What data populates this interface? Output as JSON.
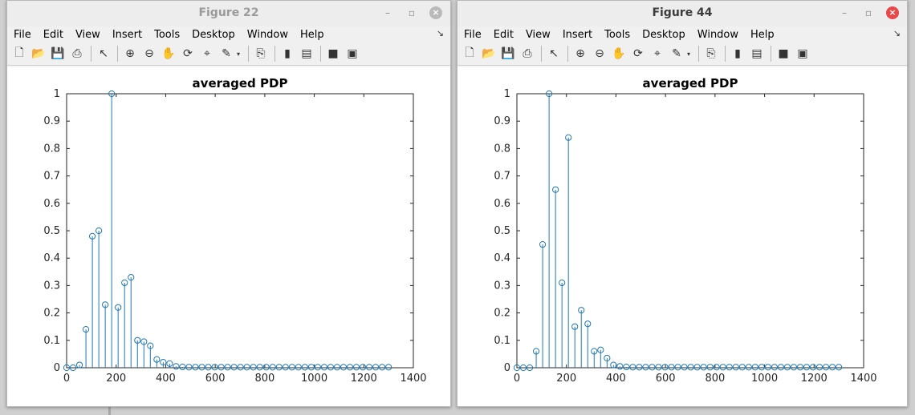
{
  "windows": [
    {
      "title": "Figure 22",
      "active": false,
      "menus": [
        "File",
        "Edit",
        "View",
        "Insert",
        "Tools",
        "Desktop",
        "Window",
        "Help"
      ],
      "chart_data": {
        "type": "stem",
        "title": "averaged PDP",
        "xlim": [
          0,
          1400
        ],
        "ylim": [
          0,
          1
        ],
        "xticks": [
          0,
          200,
          400,
          600,
          800,
          1000,
          1200,
          1400
        ],
        "yticks": [
          0,
          0.1,
          0.2,
          0.3,
          0.4,
          0.5,
          0.6,
          0.7,
          0.8,
          0.9,
          1
        ],
        "tick_labels_x": [
          "0",
          "200",
          "400",
          "600",
          "800",
          "1000",
          "1200",
          "1400"
        ],
        "tick_labels_y": [
          "0",
          "0.1",
          "0.2",
          "0.3",
          "0.4",
          "0.5",
          "0.6",
          "0.7",
          "0.8",
          "0.9",
          "1"
        ],
        "x": [
          0,
          26,
          52,
          78,
          104,
          130,
          156,
          182,
          208,
          234,
          260,
          286,
          312,
          338,
          364,
          390,
          416,
          442,
          468,
          494,
          520,
          546,
          572,
          598,
          624,
          650,
          676,
          702,
          728,
          754,
          780,
          806,
          832,
          858,
          884,
          910,
          936,
          962,
          988,
          1014,
          1040,
          1066,
          1092,
          1118,
          1144,
          1170,
          1196,
          1222,
          1248,
          1274,
          1300
        ],
        "values": [
          0,
          0,
          0.01,
          0.14,
          0.48,
          0.5,
          0.23,
          1.0,
          0.22,
          0.31,
          0.33,
          0.1,
          0.095,
          0.08,
          0.03,
          0.02,
          0.015,
          0.005,
          0.003,
          0.002,
          0.002,
          0.002,
          0.002,
          0.002,
          0.002,
          0.002,
          0.002,
          0.002,
          0.002,
          0.002,
          0.002,
          0.002,
          0.002,
          0.002,
          0.002,
          0.002,
          0.002,
          0.002,
          0.002,
          0.002,
          0.002,
          0.002,
          0.002,
          0.002,
          0.002,
          0.002,
          0.002,
          0.002,
          0.002,
          0.002,
          0.002
        ],
        "grid": false,
        "color": "#1f77b4"
      }
    },
    {
      "title": "Figure 44",
      "active": true,
      "menus": [
        "File",
        "Edit",
        "View",
        "Insert",
        "Tools",
        "Desktop",
        "Window",
        "Help"
      ],
      "chart_data": {
        "type": "stem",
        "title": "averaged PDP",
        "xlim": [
          0,
          1400
        ],
        "ylim": [
          0,
          1
        ],
        "xticks": [
          0,
          200,
          400,
          600,
          800,
          1000,
          1200,
          1400
        ],
        "yticks": [
          0,
          0.1,
          0.2,
          0.3,
          0.4,
          0.5,
          0.6,
          0.7,
          0.8,
          0.9,
          1
        ],
        "tick_labels_x": [
          "0",
          "200",
          "400",
          "600",
          "800",
          "1000",
          "1200",
          "1400"
        ],
        "tick_labels_y": [
          "0",
          "0.1",
          "0.2",
          "0.3",
          "0.4",
          "0.5",
          "0.6",
          "0.7",
          "0.8",
          "0.9",
          "1"
        ],
        "x": [
          0,
          26,
          52,
          78,
          104,
          130,
          156,
          182,
          208,
          234,
          260,
          286,
          312,
          338,
          364,
          390,
          416,
          442,
          468,
          494,
          520,
          546,
          572,
          598,
          624,
          650,
          676,
          702,
          728,
          754,
          780,
          806,
          832,
          858,
          884,
          910,
          936,
          962,
          988,
          1014,
          1040,
          1066,
          1092,
          1118,
          1144,
          1170,
          1196,
          1222,
          1248,
          1274,
          1300
        ],
        "values": [
          0,
          0,
          0,
          0.06,
          0.45,
          1.0,
          0.65,
          0.31,
          0.84,
          0.15,
          0.21,
          0.16,
          0.06,
          0.065,
          0.035,
          0.01,
          0.005,
          0.003,
          0.002,
          0.002,
          0.002,
          0.002,
          0.002,
          0.002,
          0.002,
          0.002,
          0.002,
          0.002,
          0.002,
          0.002,
          0.002,
          0.002,
          0.002,
          0.002,
          0.002,
          0.002,
          0.002,
          0.002,
          0.002,
          0.002,
          0.002,
          0.002,
          0.002,
          0.002,
          0.002,
          0.002,
          0.002,
          0.002,
          0.002,
          0.002,
          0.002
        ],
        "grid": false,
        "color": "#1f77b4"
      }
    }
  ]
}
